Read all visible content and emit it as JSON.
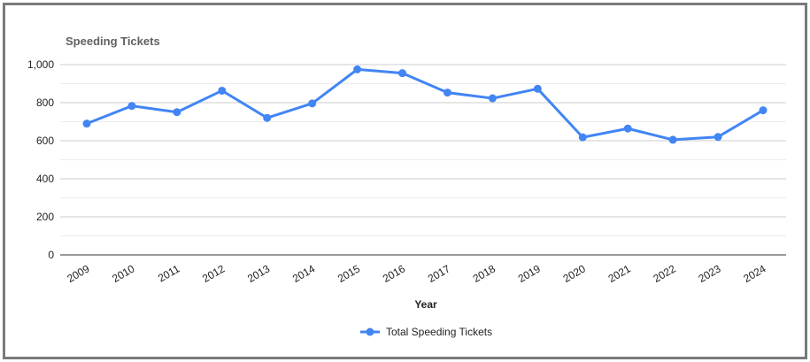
{
  "chart_data": {
    "type": "line",
    "title": "Speeding Tickets",
    "xlabel": "Year",
    "ylabel": "",
    "ylim": [
      0,
      1000
    ],
    "yticks": [
      0,
      200,
      400,
      600,
      800,
      1000
    ],
    "ytick_labels": [
      "0",
      "200",
      "400",
      "600",
      "800",
      "1,000"
    ],
    "categories": [
      "2009",
      "2010",
      "2011",
      "2012",
      "2013",
      "2014",
      "2015",
      "2016",
      "2017",
      "2018",
      "2019",
      "2020",
      "2021",
      "2022",
      "2023",
      "2024"
    ],
    "series": [
      {
        "name": "Total Speeding Tickets",
        "color": "#4285f4",
        "values": [
          690,
          783,
          750,
          863,
          720,
          796,
          975,
          955,
          853,
          823,
          873,
          618,
          664,
          605,
          620,
          760
        ]
      }
    ],
    "grid": true,
    "legend_position": "bottom"
  }
}
